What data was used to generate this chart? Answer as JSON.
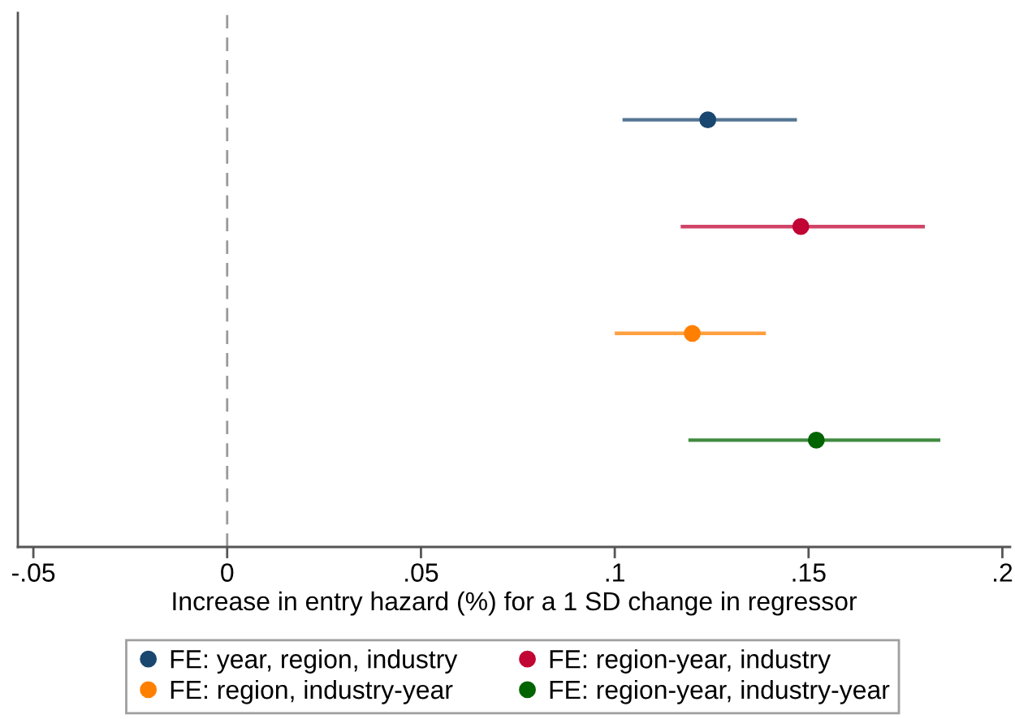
{
  "chart_data": {
    "type": "scatter",
    "orientation": "horizontal",
    "xlabel": "Increase in entry hazard (%) for a 1 SD change in regressor",
    "categories": [
      null,
      null,
      null,
      null
    ],
    "series": [
      {
        "name": "FE: year, region, industry",
        "color": "#1a476f",
        "values": [
          0.124,
          null,
          null,
          null
        ],
        "errors": [
          [
            0.102,
            0.147
          ],
          null,
          null,
          null
        ]
      },
      {
        "name": "FE: region-year, industry",
        "color": "#c10534",
        "values": [
          null,
          0.148,
          null,
          null
        ],
        "errors": [
          null,
          [
            0.117,
            0.18
          ],
          null,
          null
        ]
      },
      {
        "name": "FE: region, industry-year",
        "color": "#ff8000",
        "values": [
          null,
          null,
          0.12,
          null
        ],
        "errors": [
          null,
          null,
          [
            0.1,
            0.139
          ],
          null
        ]
      },
      {
        "name": "FE: region-year, industry-year",
        "color": "#006400",
        "values": [
          null,
          null,
          null,
          0.152
        ],
        "errors": [
          null,
          null,
          null,
          [
            0.119,
            0.184
          ]
        ]
      }
    ],
    "xlim": [
      -0.054,
      0.202
    ],
    "xticks": [
      {
        "value": -0.05,
        "label": "-.05"
      },
      0,
      {
        "value": 0.05,
        "label": ".05"
      },
      {
        "value": 0.1,
        "label": ".1"
      },
      {
        "value": 0.15,
        "label": ".15"
      },
      {
        "value": 0.2,
        "label": ".2"
      }
    ],
    "ref_lines": [
      {
        "axis": "x",
        "value": 0,
        "color": "#999999",
        "line_style": "dashed"
      }
    ],
    "legend": "bottom",
    "marker": "circle",
    "tick_labels": "x"
  }
}
